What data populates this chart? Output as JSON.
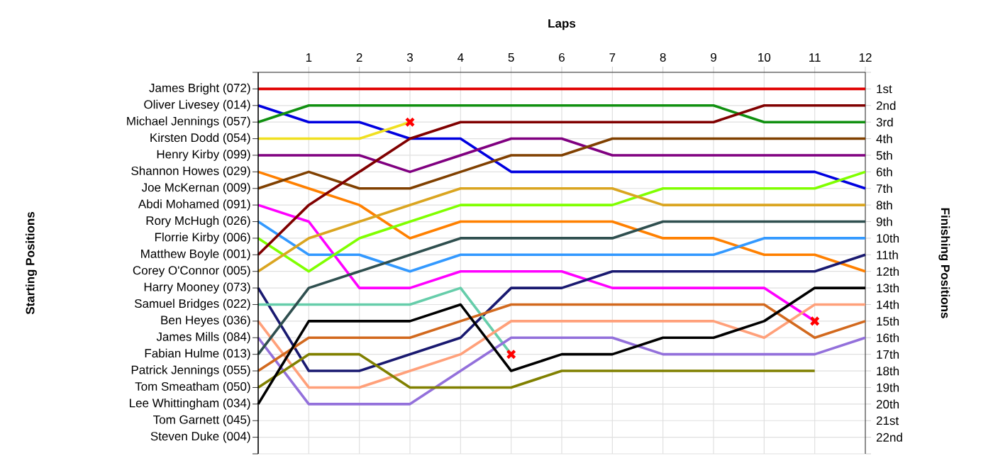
{
  "chart_data": {
    "type": "line",
    "xlabel": "Laps",
    "ylabel": "Finishing Positions",
    "x": [
      0,
      1,
      2,
      3,
      4,
      5,
      6,
      7,
      8,
      9,
      10,
      11,
      12
    ],
    "xlim": [
      0,
      12
    ],
    "xticks": [
      1,
      2,
      3,
      4,
      5,
      6,
      7,
      8,
      9,
      10,
      11,
      12
    ],
    "ylim": [
      23,
      0
    ],
    "yticks": [
      {
        "value": 0,
        "label": null
      },
      {
        "value": 1,
        "label": "1st"
      },
      {
        "value": 2,
        "label": "2nd"
      },
      {
        "value": 3,
        "label": "3rd"
      },
      {
        "value": 4,
        "label": "4th"
      },
      {
        "value": 5,
        "label": "5th"
      },
      {
        "value": 6,
        "label": "6th"
      },
      {
        "value": 7,
        "label": "7th"
      },
      {
        "value": 8,
        "label": "8th"
      },
      {
        "value": 9,
        "label": "9th"
      },
      {
        "value": 10,
        "label": "10th"
      },
      {
        "value": 11,
        "label": "11th"
      },
      {
        "value": 12,
        "label": "12th"
      },
      {
        "value": 13,
        "label": "13th"
      },
      {
        "value": 14,
        "label": "14th"
      },
      {
        "value": 15,
        "label": "15th"
      },
      {
        "value": 16,
        "label": "16th"
      },
      {
        "value": 17,
        "label": "17th"
      },
      {
        "value": 18,
        "label": "18th"
      },
      {
        "value": 19,
        "label": "19th"
      },
      {
        "value": 20,
        "label": "20th"
      },
      {
        "value": 21,
        "label": "21st"
      },
      {
        "value": 22,
        "label": "22nd"
      },
      {
        "value": 23,
        "label": null
      }
    ],
    "annotations": [
      "Starting Positions",
      "James Bright (072)",
      "Oliver Livesey (014)",
      "Michael Jennings (057)",
      "Kirsten Dodd (054)",
      "Henry Kirby (099)",
      "Shannon Howes (029)",
      "Joe McKernan (009)",
      "Abdi Mohamed (091)",
      "Rory McHugh (026)",
      "Florrie Kirby (006)",
      "Matthew Boyle (001)",
      "Corey O'Connor (005)",
      "Harry Mooney (073)",
      "Samuel Bridges (022)",
      "Ben Heyes (036)",
      "James Mills (084)",
      "Fabian Hulme (013)",
      "Patrick Jennings (055)",
      "Tom Smeatham (050)",
      "Lee Whittingham (034)",
      "Tom Garnett (045)",
      "Steven Duke (004)"
    ],
    "grid": true,
    "marker": "none",
    "series": [
      {
        "color": "#e00000",
        "values": [
          1,
          1,
          1,
          1,
          1,
          1,
          1,
          1,
          1,
          1,
          1,
          1,
          1
        ]
      },
      {
        "color": "#0000e0",
        "values": [
          2,
          3,
          3,
          4,
          4,
          6,
          6,
          6,
          6,
          6,
          6,
          6,
          7
        ]
      },
      {
        "color": "#109010",
        "values": [
          3,
          2,
          2,
          2,
          2,
          2,
          2,
          2,
          2,
          2,
          3,
          3,
          3
        ]
      },
      {
        "color": "#f0e020",
        "values": [
          4,
          4,
          4,
          3,
          null,
          null,
          null,
          null,
          null,
          null,
          null,
          null,
          null
        ]
      },
      {
        "color": "#800080",
        "values": [
          5,
          5,
          5,
          6,
          5,
          4,
          4,
          5,
          5,
          5,
          5,
          5,
          5
        ]
      },
      {
        "color": "#ff8000",
        "values": [
          6,
          7,
          8,
          10,
          9,
          9,
          9,
          9,
          10,
          10,
          11,
          11,
          12
        ]
      },
      {
        "color": "#804000",
        "values": [
          7,
          6,
          7,
          7,
          6,
          5,
          5,
          4,
          4,
          4,
          4,
          4,
          4
        ]
      },
      {
        "color": "#ff00ff",
        "values": [
          8,
          9,
          13,
          13,
          12,
          12,
          12,
          13,
          13,
          13,
          13,
          15,
          null
        ]
      },
      {
        "color": "#3399ff",
        "values": [
          9,
          11,
          11,
          12,
          11,
          11,
          11,
          11,
          11,
          11,
          10,
          10,
          10
        ]
      },
      {
        "color": "#80ff00",
        "values": [
          10,
          12,
          10,
          9,
          8,
          8,
          8,
          8,
          7,
          7,
          7,
          7,
          6
        ]
      },
      {
        "color": "#800000",
        "values": [
          11,
          8,
          6,
          4,
          3,
          3,
          3,
          3,
          3,
          3,
          2,
          2,
          2
        ]
      },
      {
        "color": "#daa520",
        "values": [
          12,
          10,
          9,
          8,
          7,
          7,
          7,
          7,
          8,
          8,
          8,
          8,
          8
        ]
      },
      {
        "color": "#191970",
        "values": [
          13,
          18,
          18,
          17,
          16,
          13,
          13,
          12,
          12,
          12,
          12,
          12,
          11
        ]
      },
      {
        "color": "#66cdaa",
        "values": [
          14,
          14,
          14,
          14,
          13,
          17,
          null,
          null,
          null,
          null,
          null,
          null,
          null
        ]
      },
      {
        "color": "#ffa07a",
        "values": [
          15,
          19,
          19,
          18,
          17,
          15,
          15,
          15,
          15,
          15,
          16,
          14,
          14
        ]
      },
      {
        "color": "#9370db",
        "values": [
          16,
          20,
          20,
          20,
          18,
          16,
          16,
          16,
          17,
          17,
          17,
          17,
          16
        ]
      },
      {
        "color": "#2f4f4f",
        "values": [
          17,
          13,
          12,
          11,
          10,
          10,
          10,
          10,
          9,
          9,
          9,
          9,
          9
        ]
      },
      {
        "color": "#d2691e",
        "values": [
          18,
          16,
          16,
          16,
          15,
          14,
          14,
          14,
          14,
          14,
          14,
          16,
          15
        ]
      },
      {
        "color": "#808000",
        "values": [
          19,
          17,
          17,
          19,
          19,
          19,
          18,
          18,
          18,
          18,
          18,
          18,
          null
        ]
      },
      {
        "color": "#000000",
        "values": [
          20,
          15,
          15,
          15,
          14,
          18,
          17,
          17,
          16,
          16,
          15,
          13,
          13
        ]
      },
      {
        "type": "scatter",
        "marker": "cross",
        "color": "#ff0000",
        "x": [
          3,
          5,
          11
        ],
        "values": [
          3,
          17,
          15
        ]
      }
    ]
  }
}
